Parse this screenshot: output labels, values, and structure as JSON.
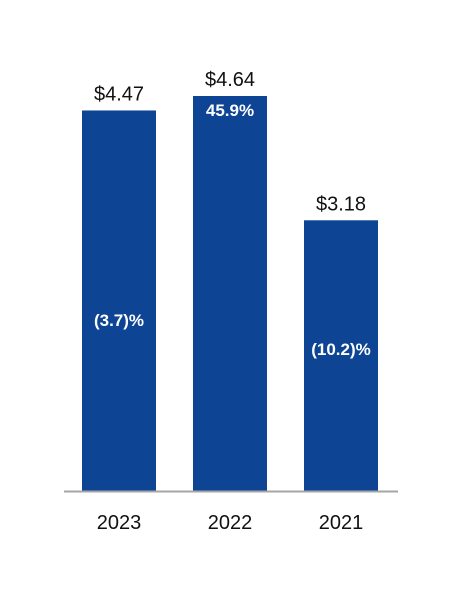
{
  "chart_data": {
    "type": "bar",
    "categories": [
      "2023",
      "2022",
      "2021"
    ],
    "values": [
      4.47,
      4.64,
      3.18
    ],
    "value_labels": [
      "$4.47",
      "$4.64",
      "$3.18"
    ],
    "change_labels": [
      "(3.7)%",
      "45.9%",
      "(10.2)%"
    ],
    "ylim": [
      0,
      4.64
    ],
    "grid": false,
    "legend": "none",
    "title": "",
    "xlabel": "",
    "ylabel": "",
    "colors": {
      "bar": "#0D4494",
      "axis": "#A6A6A6"
    }
  }
}
